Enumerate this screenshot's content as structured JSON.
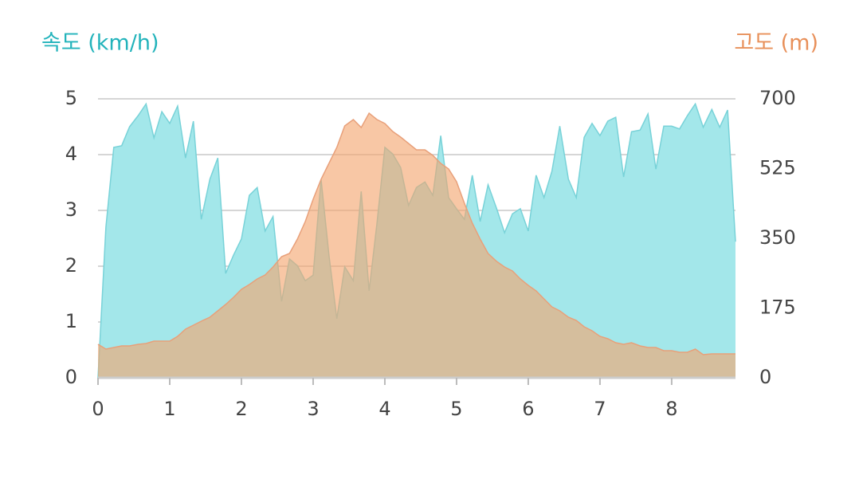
{
  "chart_data": {
    "type": "area",
    "y_title": "속도 (km/h)",
    "y2_title": "고도 (m)",
    "y_title_color": "#22b3bb",
    "y2_title_color": "#e8905a",
    "xlim": [
      0,
      8.89
    ],
    "xticks": [
      0,
      1,
      2,
      3,
      4,
      5,
      6,
      7,
      8
    ],
    "ylim": [
      0,
      5
    ],
    "yticks": [
      0,
      1,
      2,
      3,
      4,
      5
    ],
    "y2lim": [
      0,
      700
    ],
    "y2ticks": [
      0,
      175,
      350,
      525,
      700
    ],
    "grid": true,
    "x": [
      0,
      0.11,
      0.22,
      0.33,
      0.44,
      0.56,
      0.67,
      0.78,
      0.89,
      1.0,
      1.11,
      1.22,
      1.33,
      1.44,
      1.56,
      1.67,
      1.78,
      1.89,
      2.0,
      2.11,
      2.22,
      2.33,
      2.44,
      2.56,
      2.67,
      2.78,
      2.89,
      3.0,
      3.11,
      3.22,
      3.33,
      3.44,
      3.56,
      3.67,
      3.78,
      3.89,
      4.0,
      4.11,
      4.22,
      4.33,
      4.44,
      4.56,
      4.67,
      4.78,
      4.89,
      5.0,
      5.11,
      5.22,
      5.33,
      5.44,
      5.56,
      5.67,
      5.78,
      5.89,
      6.0,
      6.11,
      6.22,
      6.33,
      6.44,
      6.56,
      6.67,
      6.78,
      6.89,
      7.0,
      7.11,
      7.22,
      7.33,
      7.44,
      7.56,
      7.67,
      7.78,
      7.89,
      8.0,
      8.11,
      8.22,
      8.33,
      8.44,
      8.56,
      8.67,
      8.78,
      8.89
    ],
    "series": [
      {
        "name": "속도",
        "color": "#a3e7ea",
        "line_color": "#78d2d8",
        "values": [
          0,
          2.7,
          4.13,
          4.16,
          4.5,
          4.7,
          4.91,
          4.3,
          4.77,
          4.56,
          4.87,
          3.94,
          4.6,
          2.84,
          3.56,
          3.94,
          1.87,
          2.2,
          2.49,
          3.27,
          3.41,
          2.63,
          2.89,
          1.37,
          2.13,
          2.01,
          1.74,
          1.84,
          3.56,
          2.2,
          1.06,
          1.99,
          1.74,
          3.34,
          1.56,
          2.77,
          4.13,
          4.01,
          3.77,
          3.09,
          3.41,
          3.51,
          3.27,
          4.34,
          3.23,
          3.03,
          2.84,
          3.63,
          2.8,
          3.46,
          3.03,
          2.6,
          2.94,
          3.03,
          2.63,
          3.63,
          3.23,
          3.7,
          4.51,
          3.56,
          3.23,
          4.31,
          4.56,
          4.34,
          4.6,
          4.67,
          3.6,
          4.41,
          4.44,
          4.73,
          3.74,
          4.51,
          4.51,
          4.46,
          4.7,
          4.91,
          4.49,
          4.81,
          4.49,
          4.8,
          2.44
        ]
      },
      {
        "name": "고도",
        "color": "#f4a46e",
        "line_color": "#e8a07a",
        "axis": "y2",
        "values": [
          84,
          72,
          76,
          80,
          80,
          84,
          86,
          92,
          92,
          92,
          104,
          122,
          132,
          142,
          152,
          168,
          184,
          202,
          222,
          234,
          248,
          258,
          278,
          304,
          312,
          348,
          392,
          448,
          498,
          538,
          578,
          632,
          648,
          628,
          664,
          648,
          638,
          618,
          604,
          588,
          572,
          572,
          558,
          538,
          524,
          492,
          438,
          388,
          348,
          312,
          292,
          278,
          268,
          248,
          232,
          218,
          198,
          178,
          168,
          152,
          144,
          128,
          118,
          104,
          98,
          88,
          84,
          88,
          80,
          76,
          76,
          68,
          68,
          64,
          64,
          72,
          58,
          60,
          60,
          60,
          60
        ]
      }
    ]
  }
}
